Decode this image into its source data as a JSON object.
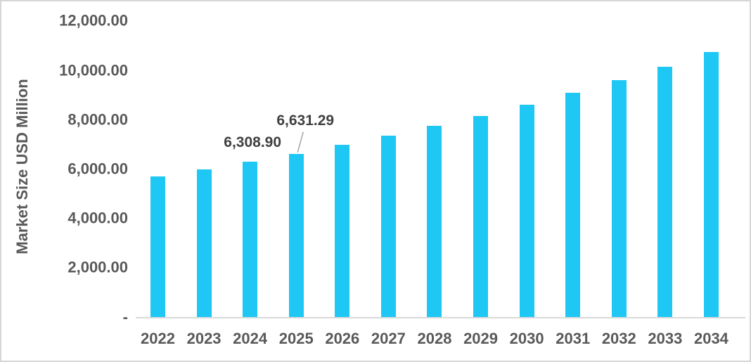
{
  "chart_data": {
    "type": "bar",
    "title": "",
    "xlabel": "",
    "ylabel": "Market Size USD Million",
    "categories": [
      "2022",
      "2023",
      "2024",
      "2025",
      "2026",
      "2027",
      "2028",
      "2029",
      "2030",
      "2031",
      "2032",
      "2033",
      "2034"
    ],
    "values": [
      5700,
      6000,
      6308.9,
      6631.29,
      7000,
      7360,
      7750,
      8170,
      8620,
      9100,
      9620,
      10170,
      10760
    ],
    "ylim": [
      0,
      12000
    ],
    "grid": false,
    "legend": false,
    "y_ticks": [
      {
        "value": 12000,
        "label": "12,000.00"
      },
      {
        "value": 10000,
        "label": "10,000.00"
      },
      {
        "value": 8000,
        "label": "8,000.00"
      },
      {
        "value": 6000,
        "label": "6,000.00"
      },
      {
        "value": 4000,
        "label": "4,000.00"
      },
      {
        "value": 2000,
        "label": "2,000.00"
      },
      {
        "value": 0,
        "label": "-"
      }
    ],
    "data_labels": [
      {
        "category": "2024",
        "index": 2,
        "text": "6,308.90",
        "leader_line": false
      },
      {
        "category": "2025",
        "index": 3,
        "text": "6,631.29",
        "leader_line": true
      }
    ],
    "bar_color": "#1EC7F4",
    "text_color": "#595959",
    "data_label_color": "#404040",
    "axis_line_color": "#D9D9D9",
    "leader_line_color": "#A6A6A6"
  }
}
